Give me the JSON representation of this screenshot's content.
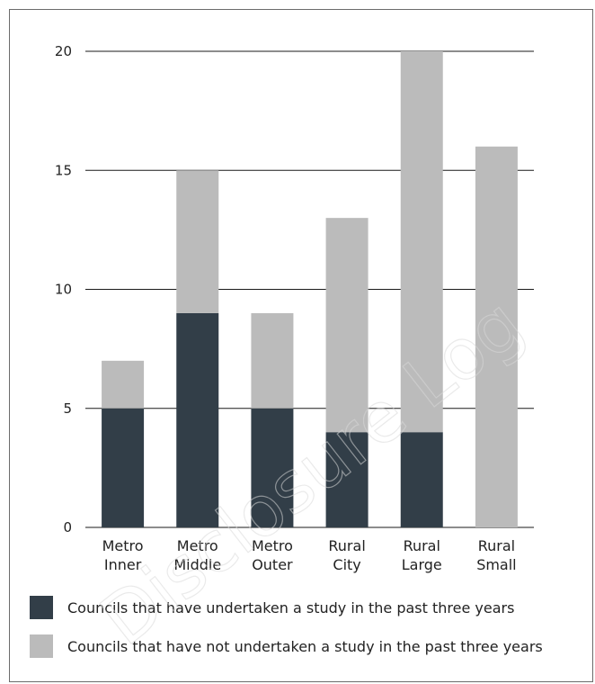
{
  "chart_data": {
    "type": "bar",
    "stacked": true,
    "categories": [
      [
        "Metro",
        "Inner"
      ],
      [
        "Metro",
        "Middle"
      ],
      [
        "Metro",
        "Outer"
      ],
      [
        "Rural",
        "City"
      ],
      [
        "Rural",
        "Large"
      ],
      [
        "Rural",
        "Small"
      ]
    ],
    "series": [
      {
        "name": "Councils that have undertaken a study in the past three years",
        "color": "#323e48",
        "values": [
          5,
          9,
          5,
          4,
          4,
          0
        ]
      },
      {
        "name": "Councils that have not undertaken a study in the past three years",
        "color": "#bbbbbb",
        "values": [
          2,
          6,
          4,
          9,
          16,
          16
        ]
      }
    ],
    "ylim": [
      0,
      20
    ],
    "yticks": [
      "0",
      "5",
      "10",
      "15",
      "20"
    ],
    "grid": true,
    "legend_position": "bottom"
  },
  "watermark": "Disclosure Log"
}
